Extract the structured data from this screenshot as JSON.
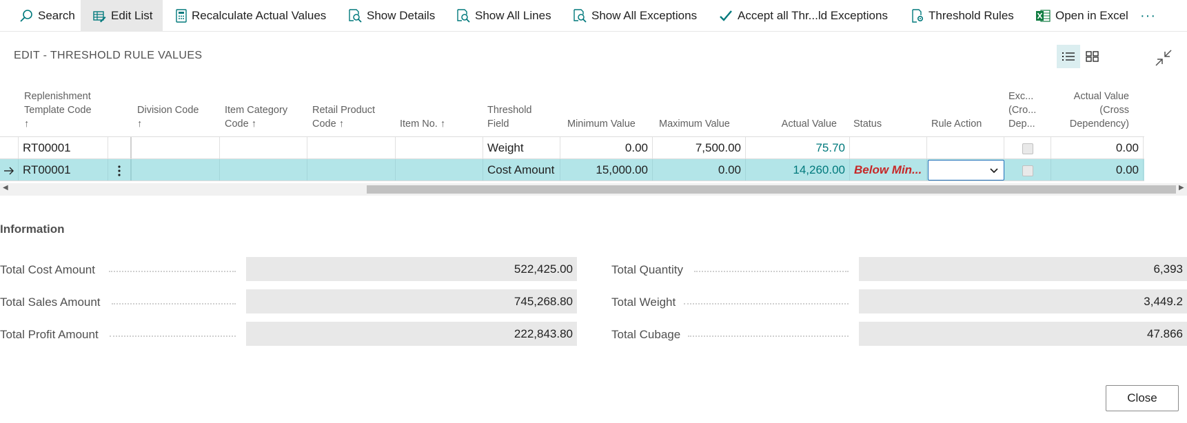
{
  "toolbar": {
    "search": "Search",
    "edit_list": "Edit List",
    "recalculate": "Recalculate Actual Values",
    "show_details": "Show Details",
    "show_all_lines": "Show All Lines",
    "show_all_exceptions": "Show All Exceptions",
    "accept_all": "Accept all Thr...ld Exceptions",
    "threshold_rules": "Threshold Rules",
    "open_in_excel": "Open in Excel",
    "more": "···"
  },
  "page": {
    "title": "EDIT - THRESHOLD RULE VALUES"
  },
  "grid": {
    "headers": {
      "replenishment_1": "Replenishment",
      "replenishment_2": "Template Code",
      "replenishment_3": "↑",
      "division_1": "Division Code",
      "division_2": "↑",
      "item_category_1": "Item Category",
      "item_category_2": "Code ↑",
      "retail_product_1": "Retail Product",
      "retail_product_2": "Code ↑",
      "item_no": "Item No. ↑",
      "threshold_field_1": "Threshold",
      "threshold_field_2": "Field",
      "minimum_value": "Minimum Value",
      "maximum_value": "Maximum Value",
      "actual_value": "Actual Value",
      "status": "Status",
      "rule_action": "Rule Action",
      "exc_1": "Exc...",
      "exc_2": "(Cro...",
      "exc_3": "Dep...",
      "actual_cross_1": "Actual Value",
      "actual_cross_2": "(Cross",
      "actual_cross_3": "Dependency)"
    },
    "rows": [
      {
        "template_code": "RT00001",
        "threshold_field": "Weight",
        "minimum_value": "0.00",
        "maximum_value": "7,500.00",
        "actual_value": "75.70",
        "status": "",
        "actual_cross": "0.00"
      },
      {
        "template_code": "RT00001",
        "threshold_field": "Cost Amount",
        "minimum_value": "15,000.00",
        "maximum_value": "0.00",
        "actual_value": "14,260.00",
        "status": "Below Min...",
        "actual_cross": "0.00"
      }
    ]
  },
  "information": {
    "title": "Information",
    "left": [
      {
        "label": "Total Cost Amount",
        "value": "522,425.00"
      },
      {
        "label": "Total Sales Amount",
        "value": "745,268.80"
      },
      {
        "label": "Total Profit Amount",
        "value": "222,843.80"
      }
    ],
    "right": [
      {
        "label": "Total Quantity",
        "value": "6,393"
      },
      {
        "label": "Total Weight",
        "value": "3,449.2"
      },
      {
        "label": "Total Cubage",
        "value": "47.866"
      }
    ]
  },
  "footer": {
    "close": "Close"
  },
  "colors": {
    "accent": "#00797c",
    "selected_row": "#b3e5e8",
    "status_error": "#c62828"
  }
}
